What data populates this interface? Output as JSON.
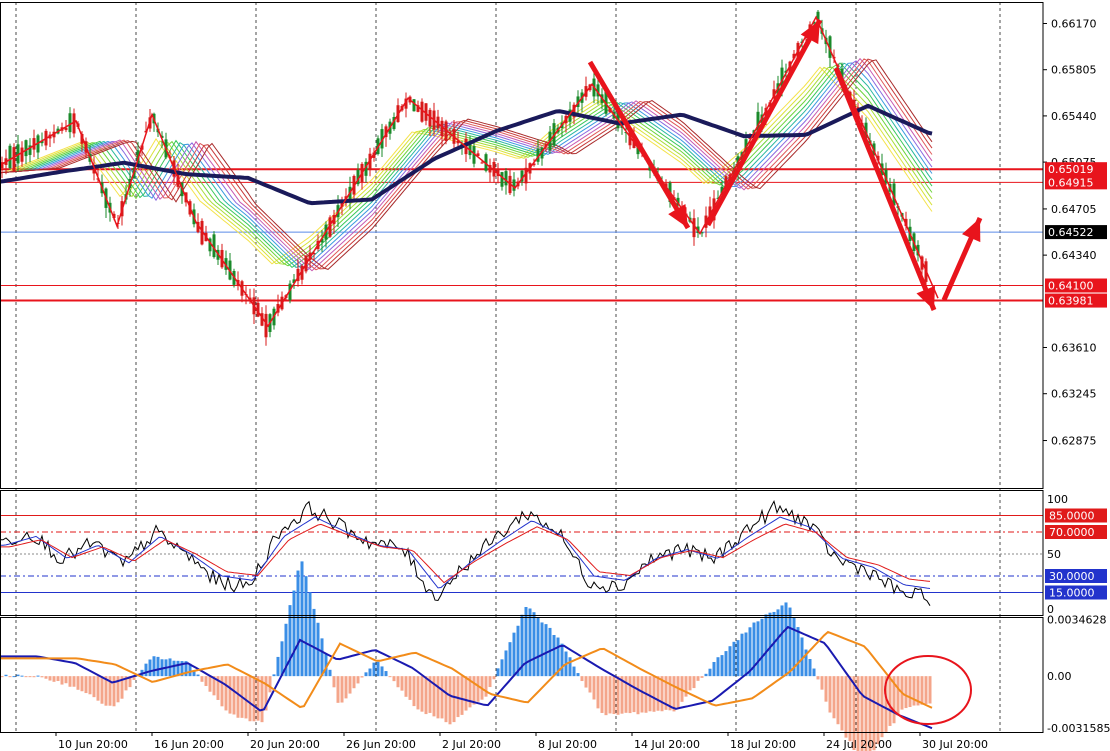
{
  "chart_data": [
    {
      "panel": "price",
      "type": "candlestick",
      "ylim": [
        0.625,
        0.6634
      ],
      "y_ticks": [
        "0.66170",
        "0.65805",
        "0.65440",
        "0.65075",
        "0.64705",
        "0.64340",
        "0.63610",
        "0.63245",
        "0.62875"
      ],
      "level_labels": [
        {
          "label": "0.65019",
          "value": 0.65019,
          "color": "#e8141c"
        },
        {
          "label": "0.64915",
          "value": 0.64915,
          "color": "#e8141c"
        },
        {
          "label": "0.64522",
          "value": 0.64522,
          "color": "#000000"
        },
        {
          "label": "0.64100",
          "value": 0.641,
          "color": "#e8141c"
        },
        {
          "label": "0.63981",
          "value": 0.63981,
          "color": "#e8141c"
        }
      ],
      "zigzag": [
        0.6505,
        0.654,
        0.6457,
        0.6545,
        0.646,
        0.6378,
        0.6558,
        0.6487,
        0.6569,
        0.6451,
        0.6622,
        0.64
      ],
      "ma_slow": [
        0.6492,
        0.65,
        0.6507,
        0.6498,
        0.6495,
        0.6475,
        0.6478,
        0.651,
        0.6532,
        0.6548,
        0.6538,
        0.6545,
        0.6528,
        0.6529,
        0.6552,
        0.653
      ],
      "close_last": 0.64522
    },
    {
      "panel": "stochastic",
      "type": "line",
      "ylim": [
        0,
        100
      ],
      "y_ticks": [
        "100",
        "50",
        "0"
      ],
      "level_labels": [
        "85.0000",
        "70.0000",
        "30.0000",
        "15.0000"
      ],
      "levels": [
        85,
        70,
        30,
        15
      ]
    },
    {
      "panel": "macd",
      "type": "histogram",
      "y_ticks": [
        "0.0034628",
        "0.00",
        "-0.0031585"
      ],
      "ylim": [
        -0.0034,
        0.0036
      ]
    }
  ],
  "x_labels": [
    "10 Jun 20:00",
    "16 Jun 20:00",
    "20 Jun 20:00",
    "26 Jun 20:00",
    "2 Jul 20:00",
    "8 Jul 20:00",
    "14 Jul 20:00",
    "18 Jul 20:00",
    "24 Jul 20:00",
    "30 Jul 20:00"
  ],
  "colors": {
    "resistance": "#e8141c",
    "zigzag": "#e8141c",
    "ma_slow": "#1a1a5a",
    "bull_candle": "#1a8a2a",
    "bear_candle": "#d81a1a",
    "stoch_main": "#000000",
    "stoch_signal1": "#2233cc",
    "stoch_signal2": "#e01a1a",
    "macd_pos": "#3a8ee6",
    "macd_neg": "#f4a58a",
    "macd_line": "#1a1ab0",
    "signal_line": "#f28c1a",
    "current_price": "#5a8ae6"
  }
}
